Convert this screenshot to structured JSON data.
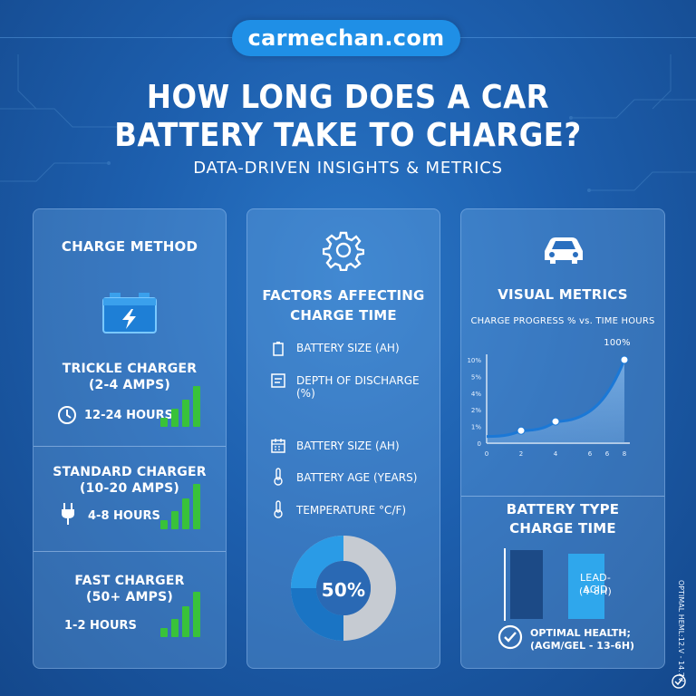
{
  "brand": "carmechan.com",
  "title_line1": "HOW LONG DOES A CAR",
  "title_line2": "BATTERY TAKE TO CHARGE?",
  "subtitle": "DATA-DRIVEN INSIGHTS & METRICS",
  "colors": {
    "accent_green": "#39c23a",
    "brand_blue": "#1f8fe6",
    "dark_bar": "#1c4a86",
    "light_bar": "#2fa7ec",
    "donut_blue": "#2a9be6",
    "donut_grey": "#c6cbd2"
  },
  "left_panel": {
    "heading": "CHARGE METHOD",
    "icon": "battery-icon",
    "chargers": [
      {
        "name": "TRICKLE CHARGER",
        "amps": "(2-4 AMPS)",
        "icon": "clock-icon",
        "time": "12-24 HOURS",
        "signal_level": 5
      },
      {
        "name": "STANDARD CHARGER",
        "amps": "(10-20 AMPS)",
        "icon": "plug-icon",
        "time": "4-8 HOURS",
        "signal_level": 5
      },
      {
        "name": "FAST CHARGER",
        "amps": "(50+ AMPS)",
        "icon": "",
        "time": "1-2 HOURS",
        "signal_level": 5
      }
    ]
  },
  "middle_panel": {
    "icon": "gear-icon",
    "heading_line1": "FACTORS AFFECTING",
    "heading_line2": "CHARGE TIME",
    "factors": [
      {
        "icon": "battery-small-icon",
        "label": "BATTERY SIZE (AH)"
      },
      {
        "icon": "document-icon",
        "label": "DEPTH OF DISCHARGE (%)"
      },
      {
        "icon": "calendar-icon",
        "label": "BATTERY SIZE (AH)"
      },
      {
        "icon": "thermometer-icon",
        "label": "BATTERY AGE (YEARS)"
      },
      {
        "icon": "thermometer-icon",
        "label": "TEMPERATURE °C/F)"
      }
    ],
    "donut": {
      "label": "50%",
      "value": 50
    }
  },
  "right_panel": {
    "icon": "car-icon",
    "heading": "VISUAL METRICS",
    "chart_title": "CHARGE PROGRESS % vs. TIME HOURS",
    "peak_label": "100%",
    "battery_type_line1": "BATTERY TYPE",
    "battery_type_line2": "CHARGE TIME",
    "lead_acid_line1": "LEAD-ACID",
    "lead_acid_line2": "(4-8H)",
    "health_line1": "OPTIMAL HEALTH;",
    "health_line2": "(AGM/GEL - 13-6H)",
    "side_text": "OPTIMAL HEML:12.V - 14.7V"
  },
  "chart_data": {
    "type": "line",
    "title": "CHARGE PROGRESS % vs. TIME HOURS",
    "x_ticks": [
      "0",
      "2",
      "4",
      "6",
      "6",
      "8"
    ],
    "y_ticks": [
      "0",
      "1%",
      "2%",
      "4%",
      "5%",
      "10%"
    ],
    "points": [
      {
        "x": 2,
        "y": 0.15
      },
      {
        "x": 4,
        "y": 0.26
      },
      {
        "x": 8,
        "y": 1.0
      }
    ],
    "grid": false
  }
}
